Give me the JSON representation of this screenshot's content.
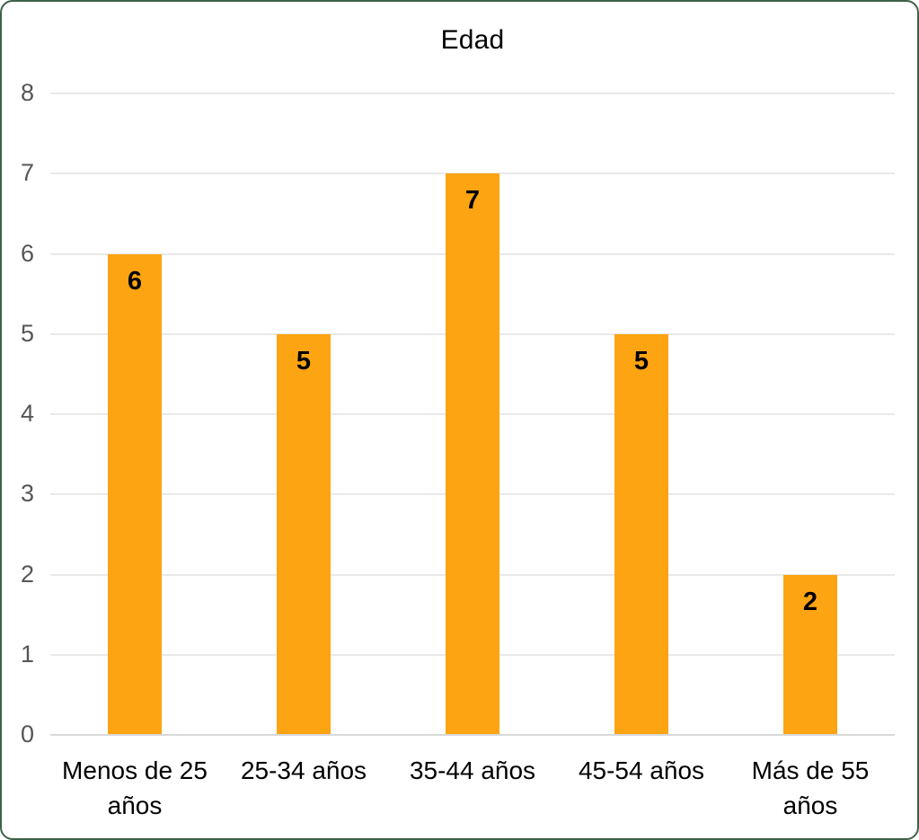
{
  "card": {
    "background": "#ffffff",
    "border_color": "#3E614A"
  },
  "chart_data": {
    "type": "bar",
    "title": "Edad",
    "categories": [
      "Menos de 25 años",
      "25-34 años",
      "35-44 años",
      "45-54 años",
      "Más de 55 años"
    ],
    "values": [
      6,
      5,
      7,
      5,
      2
    ],
    "data_labels": [
      "6",
      "5",
      "7",
      "5",
      "2"
    ],
    "xlabel": "",
    "ylabel": "",
    "ylim": [
      0,
      8
    ],
    "yticks": [
      0,
      1,
      2,
      3,
      4,
      5,
      6,
      7,
      8
    ],
    "grid": "horizontal",
    "legend": "none",
    "bar_color": "#FCA412",
    "data_label_color": "#000000",
    "title_color": "#000000",
    "x_label_color": "#000000",
    "y_tick_color": "#565656",
    "gridline_color": "#e9e9e9",
    "axis_line_color": "#d8d8d8"
  }
}
